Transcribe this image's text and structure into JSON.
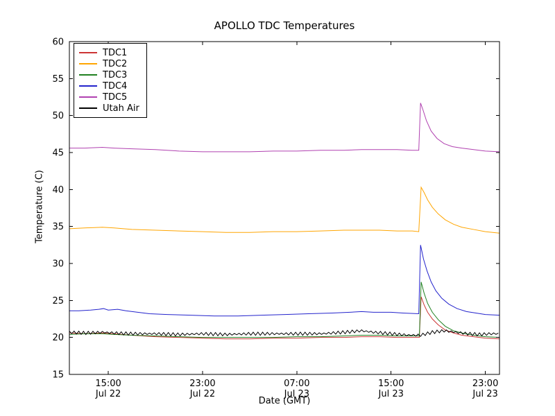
{
  "chart_data": {
    "type": "line",
    "title": "APOLLO TDC Temperatures",
    "xlabel": "Date (GMT)",
    "ylabel": "Temperature (C)",
    "x_units": "hours since Jul 22 00:00 GMT",
    "xlim": [
      11.7,
      48.2
    ],
    "ylim": [
      15,
      60
    ],
    "yticks": [
      15,
      20,
      25,
      30,
      35,
      40,
      45,
      50,
      55,
      60
    ],
    "xticks": [
      {
        "t": 15,
        "time": "15:00",
        "date": "Jul 22"
      },
      {
        "t": 23,
        "time": "23:00",
        "date": "Jul 22"
      },
      {
        "t": 31,
        "time": "07:00",
        "date": "Jul 23"
      },
      {
        "t": 39,
        "time": "15:00",
        "date": "Jul 23"
      },
      {
        "t": 47,
        "time": "23:00",
        "date": "Jul 23"
      }
    ],
    "legend_position": "upper left",
    "grid": false,
    "series": [
      {
        "name": "TDC1",
        "color": "#cc3333",
        "points": [
          [
            11.7,
            20.6
          ],
          [
            13,
            20.5
          ],
          [
            14.5,
            20.6
          ],
          [
            15.5,
            20.5
          ],
          [
            17,
            20.3
          ],
          [
            19,
            20.1
          ],
          [
            21,
            20.0
          ],
          [
            23,
            19.9
          ],
          [
            25,
            19.8
          ],
          [
            27,
            19.8
          ],
          [
            29,
            19.9
          ],
          [
            31,
            19.9
          ],
          [
            33,
            20.0
          ],
          [
            35,
            20.0
          ],
          [
            36.5,
            20.1
          ],
          [
            38,
            20.1
          ],
          [
            39.5,
            20.0
          ],
          [
            40.8,
            20.0
          ],
          [
            41.4,
            20.0
          ],
          [
            41.55,
            25.5
          ],
          [
            41.8,
            24.4
          ],
          [
            42.1,
            23.4
          ],
          [
            42.5,
            22.5
          ],
          [
            43,
            21.7
          ],
          [
            43.6,
            21.0
          ],
          [
            44.3,
            20.6
          ],
          [
            45,
            20.3
          ],
          [
            46,
            20.1
          ],
          [
            47,
            19.9
          ],
          [
            48.2,
            19.8
          ]
        ]
      },
      {
        "name": "TDC2",
        "color": "#ffa500",
        "points": [
          [
            11.7,
            34.7
          ],
          [
            13,
            34.8
          ],
          [
            14.5,
            34.9
          ],
          [
            15.5,
            34.8
          ],
          [
            17,
            34.6
          ],
          [
            19,
            34.5
          ],
          [
            21,
            34.4
          ],
          [
            23,
            34.3
          ],
          [
            25,
            34.2
          ],
          [
            27,
            34.2
          ],
          [
            29,
            34.3
          ],
          [
            31,
            34.3
          ],
          [
            33,
            34.4
          ],
          [
            35,
            34.5
          ],
          [
            36.5,
            34.5
          ],
          [
            38,
            34.5
          ],
          [
            39.5,
            34.4
          ],
          [
            40.8,
            34.4
          ],
          [
            41.35,
            34.3
          ],
          [
            41.55,
            40.3
          ],
          [
            41.8,
            39.6
          ],
          [
            42.1,
            38.6
          ],
          [
            42.5,
            37.6
          ],
          [
            43,
            36.7
          ],
          [
            43.6,
            35.9
          ],
          [
            44.3,
            35.3
          ],
          [
            45,
            34.9
          ],
          [
            46,
            34.6
          ],
          [
            47,
            34.3
          ],
          [
            48.2,
            34.1
          ]
        ]
      },
      {
        "name": "TDC3",
        "color": "#208020",
        "points": [
          [
            11.7,
            20.4
          ],
          [
            13,
            20.5
          ],
          [
            14.5,
            20.5
          ],
          [
            15.5,
            20.4
          ],
          [
            17,
            20.3
          ],
          [
            19,
            20.2
          ],
          [
            21,
            20.1
          ],
          [
            23,
            20.0
          ],
          [
            25,
            20.0
          ],
          [
            27,
            20.0
          ],
          [
            29,
            20.0
          ],
          [
            31,
            20.1
          ],
          [
            33,
            20.1
          ],
          [
            35,
            20.2
          ],
          [
            36.5,
            20.3
          ],
          [
            38,
            20.3
          ],
          [
            39.5,
            20.2
          ],
          [
            40.8,
            20.2
          ],
          [
            41.4,
            20.2
          ],
          [
            41.55,
            27.5
          ],
          [
            41.8,
            26.0
          ],
          [
            42.1,
            24.6
          ],
          [
            42.5,
            23.4
          ],
          [
            43,
            22.4
          ],
          [
            43.6,
            21.5
          ],
          [
            44.3,
            20.9
          ],
          [
            45,
            20.6
          ],
          [
            46,
            20.3
          ],
          [
            47,
            20.1
          ],
          [
            48.2,
            20.0
          ]
        ]
      },
      {
        "name": "TDC4",
        "color": "#2222cc",
        "points": [
          [
            11.7,
            23.6
          ],
          [
            12.5,
            23.6
          ],
          [
            13.5,
            23.7
          ],
          [
            14.2,
            23.8
          ],
          [
            14.6,
            23.9
          ],
          [
            15,
            23.7
          ],
          [
            15.8,
            23.8
          ],
          [
            16.5,
            23.6
          ],
          [
            17.5,
            23.4
          ],
          [
            18.5,
            23.2
          ],
          [
            20,
            23.1
          ],
          [
            22,
            23.0
          ],
          [
            24,
            22.9
          ],
          [
            26,
            22.9
          ],
          [
            28,
            23.0
          ],
          [
            30,
            23.1
          ],
          [
            32,
            23.2
          ],
          [
            34,
            23.3
          ],
          [
            35.5,
            23.4
          ],
          [
            36.5,
            23.5
          ],
          [
            37.5,
            23.4
          ],
          [
            39,
            23.4
          ],
          [
            40,
            23.3
          ],
          [
            41.35,
            23.2
          ],
          [
            41.5,
            32.5
          ],
          [
            41.75,
            30.6
          ],
          [
            42.05,
            29.0
          ],
          [
            42.4,
            27.5
          ],
          [
            42.8,
            26.3
          ],
          [
            43.3,
            25.3
          ],
          [
            43.9,
            24.5
          ],
          [
            44.6,
            23.9
          ],
          [
            45.4,
            23.5
          ],
          [
            46.2,
            23.3
          ],
          [
            47,
            23.1
          ],
          [
            48.2,
            23.0
          ]
        ]
      },
      {
        "name": "TDC5",
        "color": "#b040b0",
        "points": [
          [
            11.7,
            45.6
          ],
          [
            13,
            45.6
          ],
          [
            14.5,
            45.7
          ],
          [
            15.5,
            45.6
          ],
          [
            17,
            45.5
          ],
          [
            19,
            45.4
          ],
          [
            21,
            45.2
          ],
          [
            23,
            45.1
          ],
          [
            25,
            45.1
          ],
          [
            27,
            45.1
          ],
          [
            29,
            45.2
          ],
          [
            31,
            45.2
          ],
          [
            33,
            45.3
          ],
          [
            35,
            45.3
          ],
          [
            36.5,
            45.4
          ],
          [
            38,
            45.4
          ],
          [
            39.5,
            45.4
          ],
          [
            40.8,
            45.3
          ],
          [
            41.35,
            45.3
          ],
          [
            41.5,
            51.7
          ],
          [
            41.7,
            50.8
          ],
          [
            42,
            49.3
          ],
          [
            42.4,
            47.9
          ],
          [
            42.9,
            46.9
          ],
          [
            43.5,
            46.2
          ],
          [
            44.2,
            45.8
          ],
          [
            45,
            45.6
          ],
          [
            46,
            45.4
          ],
          [
            47,
            45.2
          ],
          [
            48.2,
            45.1
          ]
        ]
      },
      {
        "name": "Utah Air",
        "color": "#000000",
        "oscillation": {
          "amplitude": 0.22,
          "period_hours": 0.4
        },
        "points": [
          [
            11.7,
            20.7
          ],
          [
            13,
            20.6
          ],
          [
            14.5,
            20.7
          ],
          [
            15.5,
            20.6
          ],
          [
            17,
            20.5
          ],
          [
            19,
            20.5
          ],
          [
            21,
            20.4
          ],
          [
            23,
            20.5
          ],
          [
            25,
            20.4
          ],
          [
            27,
            20.5
          ],
          [
            29,
            20.5
          ],
          [
            31,
            20.5
          ],
          [
            33,
            20.5
          ],
          [
            35,
            20.7
          ],
          [
            36.5,
            20.9
          ],
          [
            37.5,
            20.7
          ],
          [
            39,
            20.5
          ],
          [
            40.5,
            20.3
          ],
          [
            41.5,
            20.3
          ],
          [
            42.5,
            20.7
          ],
          [
            43.5,
            20.9
          ],
          [
            44.5,
            20.7
          ],
          [
            45.5,
            20.5
          ],
          [
            46.5,
            20.4
          ],
          [
            47.5,
            20.5
          ],
          [
            48.2,
            20.5
          ]
        ]
      }
    ]
  }
}
